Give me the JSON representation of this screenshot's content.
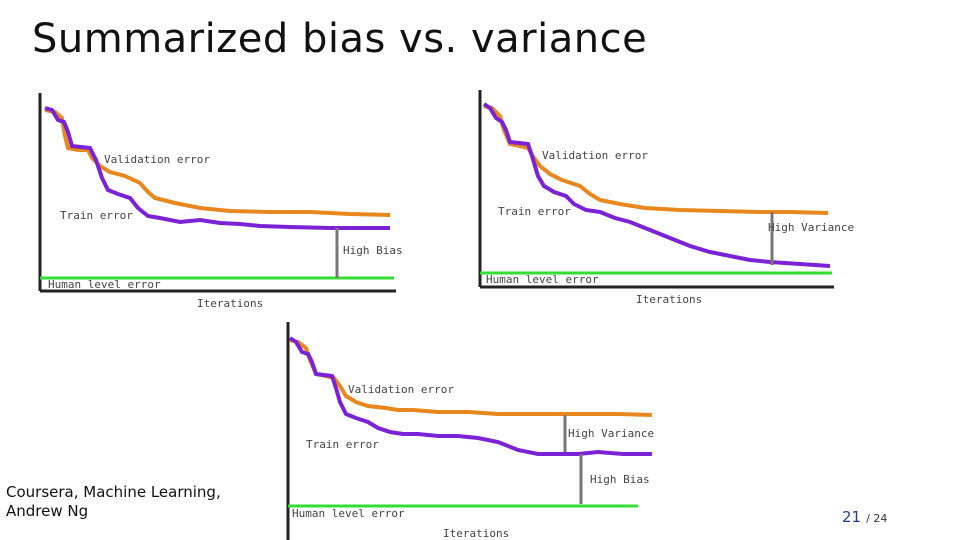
{
  "slide": {
    "title": "Summarized bias vs. variance",
    "credit": "Coursera, Machine Learning,\nAndrew Ng",
    "page_current": "21",
    "page_total": "/ 24"
  },
  "diagrams": {
    "colors": {
      "validation": "#e8871e",
      "train": "#7b22d6",
      "human": "#33dd33",
      "axis": "#222222",
      "gap": "#777777",
      "label": "#444444"
    },
    "high_bias": {
      "validation_label": "Validation error",
      "train_label": "Train error",
      "gap_label": "High Bias",
      "human_label": "Human level error",
      "x_label": "Iterations"
    },
    "high_variance": {
      "validation_label": "Validation error",
      "train_label": "Train error",
      "gap_label": "High Variance",
      "human_label": "Human level error",
      "x_label": "Iterations"
    },
    "both": {
      "validation_label": "Validation error",
      "train_label": "Train error",
      "gap_label_variance": "High Variance",
      "gap_label_bias": "High Bias",
      "human_label": "Human level error",
      "x_label": "Iterations"
    }
  }
}
